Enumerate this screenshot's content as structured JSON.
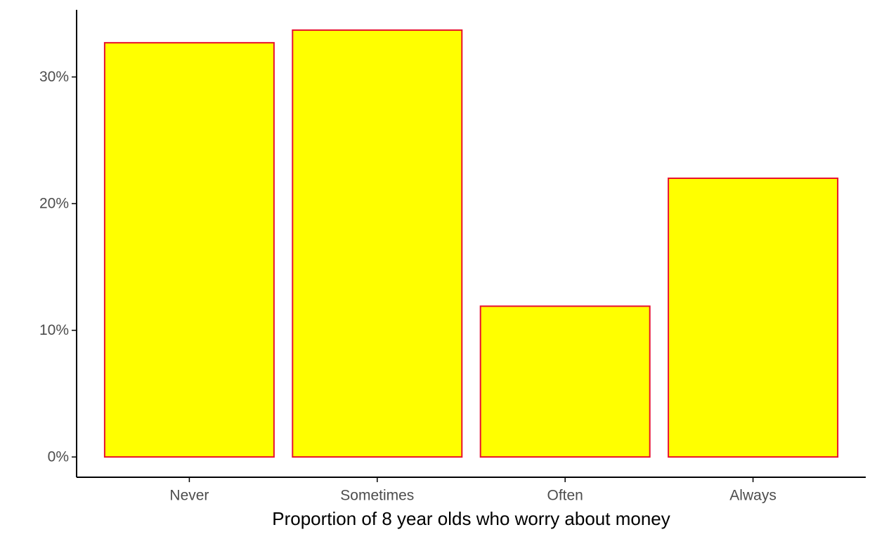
{
  "chart_data": {
    "type": "bar",
    "xlabel": "Proportion of 8 year olds who worry about money",
    "ylabel": "",
    "categories": [
      "Never",
      "Sometimes",
      "Often",
      "Always"
    ],
    "values": [
      0.327,
      0.337,
      0.119,
      0.22
    ],
    "ylim": [
      -0.016,
      0.353
    ],
    "yticks": [
      0,
      0.1,
      0.2,
      0.3
    ],
    "ytick_labels": [
      "0%",
      "10%",
      "20%",
      "30%"
    ],
    "grid": false,
    "legend": "none",
    "colors": {
      "bar_fill": "#ffff00",
      "bar_stroke": "#e8112d",
      "axis": "#000000",
      "tick_text": "#4d4d4d"
    }
  }
}
